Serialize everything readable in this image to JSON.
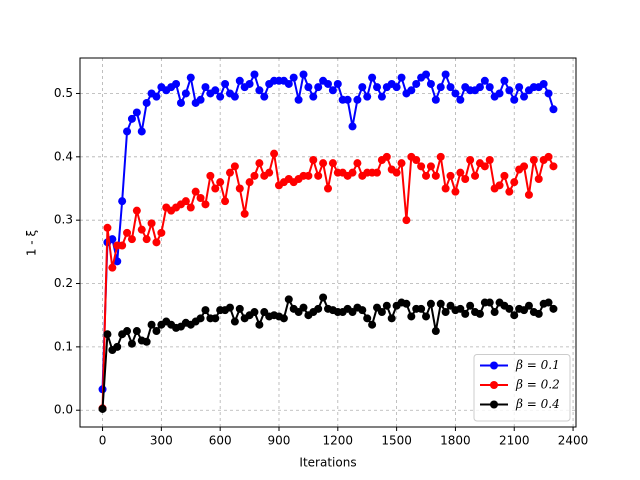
{
  "chart_data": {
    "type": "line",
    "xlabel": "Iterations",
    "ylabel": "1 - ξ",
    "x": [
      0,
      25,
      50,
      75,
      100,
      125,
      150,
      175,
      200,
      225,
      250,
      275,
      300,
      325,
      350,
      375,
      400,
      425,
      450,
      475,
      500,
      525,
      550,
      575,
      600,
      625,
      650,
      675,
      700,
      725,
      750,
      775,
      800,
      825,
      850,
      875,
      900,
      925,
      950,
      975,
      1000,
      1025,
      1050,
      1075,
      1100,
      1125,
      1150,
      1175,
      1200,
      1225,
      1250,
      1275,
      1300,
      1325,
      1350,
      1375,
      1400,
      1425,
      1450,
      1475,
      1500,
      1525,
      1550,
      1575,
      1600,
      1625,
      1650,
      1675,
      1700,
      1725,
      1750,
      1775,
      1800,
      1825,
      1850,
      1875,
      1900,
      1925,
      1950,
      1975,
      2000,
      2025,
      2050,
      2075,
      2100,
      2125,
      2150,
      2175,
      2200,
      2225,
      2250,
      2275,
      2300
    ],
    "series": [
      {
        "name": "β = 0.1",
        "color": "#0000ff",
        "values": [
          0.033,
          0.265,
          0.27,
          0.235,
          0.33,
          0.44,
          0.46,
          0.47,
          0.44,
          0.485,
          0.5,
          0.495,
          0.51,
          0.505,
          0.51,
          0.515,
          0.485,
          0.5,
          0.525,
          0.485,
          0.49,
          0.51,
          0.5,
          0.505,
          0.495,
          0.515,
          0.5,
          0.495,
          0.52,
          0.51,
          0.515,
          0.53,
          0.505,
          0.495,
          0.515,
          0.52,
          0.52,
          0.52,
          0.515,
          0.525,
          0.49,
          0.53,
          0.51,
          0.495,
          0.51,
          0.52,
          0.515,
          0.505,
          0.515,
          0.49,
          0.49,
          0.448,
          0.49,
          0.51,
          0.495,
          0.525,
          0.51,
          0.495,
          0.51,
          0.515,
          0.51,
          0.525,
          0.5,
          0.505,
          0.515,
          0.525,
          0.53,
          0.515,
          0.49,
          0.51,
          0.53,
          0.51,
          0.5,
          0.49,
          0.51,
          0.505,
          0.505,
          0.51,
          0.52,
          0.51,
          0.495,
          0.5,
          0.52,
          0.505,
          0.49,
          0.51,
          0.495,
          0.505,
          0.51,
          0.51,
          0.515,
          0.5,
          0.475
        ]
      },
      {
        "name": "β = 0.2",
        "color": "#ff0000",
        "values": [
          0.003,
          0.288,
          0.225,
          0.26,
          0.26,
          0.28,
          0.27,
          0.315,
          0.285,
          0.27,
          0.295,
          0.265,
          0.28,
          0.32,
          0.315,
          0.32,
          0.325,
          0.33,
          0.32,
          0.345,
          0.335,
          0.325,
          0.37,
          0.35,
          0.36,
          0.33,
          0.375,
          0.385,
          0.35,
          0.31,
          0.36,
          0.37,
          0.39,
          0.37,
          0.375,
          0.405,
          0.355,
          0.36,
          0.365,
          0.36,
          0.365,
          0.37,
          0.37,
          0.395,
          0.37,
          0.39,
          0.35,
          0.39,
          0.375,
          0.375,
          0.37,
          0.375,
          0.39,
          0.37,
          0.375,
          0.375,
          0.375,
          0.395,
          0.4,
          0.38,
          0.375,
          0.39,
          0.3,
          0.4,
          0.395,
          0.385,
          0.37,
          0.385,
          0.37,
          0.4,
          0.35,
          0.37,
          0.345,
          0.375,
          0.365,
          0.395,
          0.37,
          0.39,
          0.385,
          0.395,
          0.35,
          0.355,
          0.37,
          0.345,
          0.36,
          0.38,
          0.385,
          0.34,
          0.395,
          0.365,
          0.395,
          0.4,
          0.385
        ]
      },
      {
        "name": "β = 0.4",
        "color": "#000000",
        "values": [
          0.002,
          0.12,
          0.095,
          0.1,
          0.12,
          0.125,
          0.105,
          0.125,
          0.11,
          0.108,
          0.135,
          0.125,
          0.135,
          0.14,
          0.135,
          0.13,
          0.132,
          0.138,
          0.135,
          0.14,
          0.145,
          0.158,
          0.145,
          0.145,
          0.158,
          0.158,
          0.162,
          0.14,
          0.16,
          0.145,
          0.15,
          0.155,
          0.135,
          0.155,
          0.148,
          0.15,
          0.148,
          0.145,
          0.175,
          0.16,
          0.155,
          0.162,
          0.15,
          0.155,
          0.16,
          0.178,
          0.16,
          0.158,
          0.155,
          0.155,
          0.16,
          0.155,
          0.162,
          0.158,
          0.145,
          0.135,
          0.162,
          0.155,
          0.165,
          0.145,
          0.165,
          0.17,
          0.168,
          0.148,
          0.16,
          0.16,
          0.148,
          0.168,
          0.125,
          0.168,
          0.155,
          0.165,
          0.158,
          0.16,
          0.152,
          0.165,
          0.155,
          0.152,
          0.17,
          0.17,
          0.155,
          0.17,
          0.165,
          0.16,
          0.15,
          0.16,
          0.158,
          0.165,
          0.155,
          0.152,
          0.168,
          0.17,
          0.16
        ]
      }
    ],
    "xlim": [
      -115,
      2415
    ],
    "ylim": [
      -0.0265,
      0.556
    ],
    "xticks": [
      0,
      300,
      600,
      900,
      1200,
      1500,
      1800,
      2100,
      2400
    ],
    "yticks": [
      {
        "value": 0,
        "label": "0.0"
      },
      0.1,
      0.2,
      0.3,
      0.4,
      0.5
    ],
    "grid": true,
    "legend": "lower right"
  }
}
